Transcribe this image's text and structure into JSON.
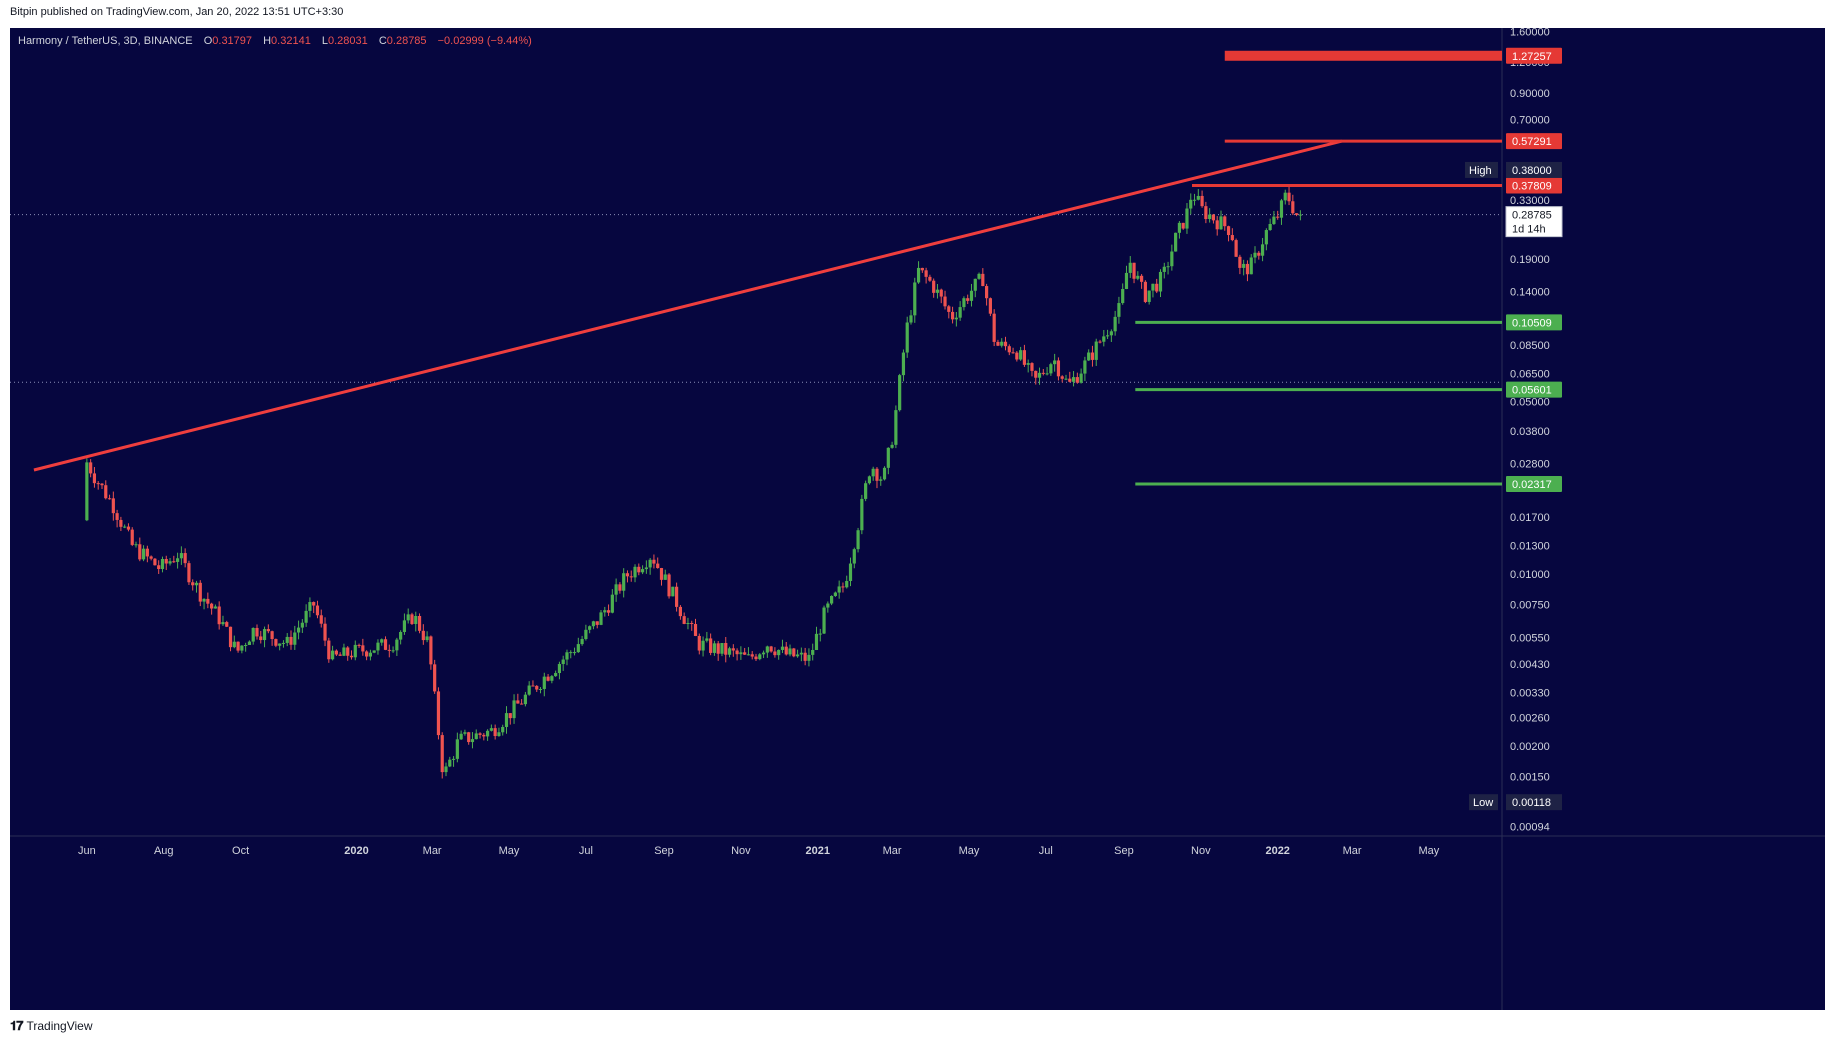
{
  "header": {
    "published": "Bitpin published on TradingView.com, Jan 20, 2022 13:51 UTC+3:30"
  },
  "legend": {
    "symbol": "Harmony / TetherUS, 3D, BINANCE",
    "open_label": "O",
    "open": "0.31797",
    "high_label": "H",
    "high": "0.32141",
    "low_label": "L",
    "low": "0.28031",
    "close_label": "C",
    "close": "0.28785",
    "change": "−0.02999 (−9.44%)"
  },
  "footer": {
    "brand": "TradingView"
  },
  "colors": {
    "background": "#06063f",
    "up": "#26a69a",
    "up_bright": "#4caf50",
    "down": "#ef5350",
    "trendline": "#ef3e3e",
    "support": "#4caf50",
    "resistance": "#e53935",
    "axis_text": "#d1d4dc"
  },
  "chart_data": {
    "type": "candlestick",
    "scale": "log",
    "x_axis": {
      "ticks": [
        "Jun",
        "Aug",
        "Oct",
        "2020",
        "Mar",
        "May",
        "Jul",
        "Sep",
        "Nov",
        "2021",
        "Mar",
        "May",
        "Jul",
        "Sep",
        "Nov",
        "2022",
        "Mar",
        "May"
      ],
      "tick_dates": [
        "2019-06-01",
        "2019-08-01",
        "2019-10-01",
        "2020-01-01",
        "2020-03-01",
        "2020-05-01",
        "2020-07-01",
        "2020-09-01",
        "2020-11-01",
        "2021-01-01",
        "2021-03-01",
        "2021-05-01",
        "2021-07-01",
        "2021-09-01",
        "2021-11-01",
        "2022-01-01",
        "2022-03-01",
        "2022-05-01"
      ],
      "range": [
        "2019-04-01",
        "2022-06-28"
      ]
    },
    "y_axis": {
      "ticks": [
        "1.60000",
        "1.20000",
        "0.90000",
        "0.70000",
        "0.33000",
        "0.19000",
        "0.14000",
        "0.08500",
        "0.06500",
        "0.05000",
        "0.03800",
        "0.02800",
        "0.01700",
        "0.01300",
        "0.01000",
        "0.00750",
        "0.00550",
        "0.00430",
        "0.00330",
        "0.00260",
        "0.00200",
        "0.00150",
        "0.00094"
      ],
      "range": [
        0.00086,
        1.65
      ]
    },
    "price_labels": [
      {
        "value": "1.27257",
        "price": 1.27257,
        "kind": "resistance"
      },
      {
        "value": "0.57291",
        "price": 0.57291,
        "kind": "resistance"
      },
      {
        "value": "0.37809",
        "price": 0.37809,
        "kind": "resistance"
      },
      {
        "value": "0.10509",
        "price": 0.10509,
        "kind": "support"
      },
      {
        "value": "0.05601",
        "price": 0.05601,
        "kind": "support"
      },
      {
        "value": "0.02317",
        "price": 0.02317,
        "kind": "support"
      }
    ],
    "high_marker": {
      "label": "High",
      "value": "0.38000",
      "price": 0.38
    },
    "low_marker": {
      "label": "Low",
      "value": "0.00118",
      "price": 0.00118
    },
    "last_price": {
      "value": "0.28785",
      "price": 0.28785,
      "countdown": "1d 14h"
    },
    "trendline": [
      {
        "date": "2019-04-20",
        "price": 0.0264
      },
      {
        "date": "2022-02-21",
        "price": 0.5729
      }
    ],
    "horizontal_levels": [
      {
        "kind": "resistance",
        "price": 1.27257,
        "start": "2021-11-20",
        "thick": true
      },
      {
        "kind": "resistance",
        "price": 0.57291,
        "start": "2021-11-20",
        "thick": false
      },
      {
        "kind": "resistance",
        "price": 0.37809,
        "start": "2021-10-25",
        "thick": false
      },
      {
        "kind": "support",
        "price": 0.10509,
        "start": "2021-09-10",
        "thick": false
      },
      {
        "kind": "support",
        "price": 0.05601,
        "start": "2021-09-10",
        "thick": false
      },
      {
        "kind": "support",
        "price": 0.02317,
        "start": "2021-09-10",
        "thick": false
      }
    ],
    "dotted_levels": [
      0.28785,
      0.06
    ],
    "price_path": [
      {
        "date": "2019-06-01",
        "price": 0.0165
      },
      {
        "date": "2019-06-03",
        "price": 0.029
      },
      {
        "date": "2019-06-12",
        "price": 0.024
      },
      {
        "date": "2019-06-25",
        "price": 0.019
      },
      {
        "date": "2019-07-10",
        "price": 0.013
      },
      {
        "date": "2019-08-01",
        "price": 0.0105
      },
      {
        "date": "2019-08-15",
        "price": 0.012
      },
      {
        "date": "2019-09-01",
        "price": 0.0085
      },
      {
        "date": "2019-09-18",
        "price": 0.0065
      },
      {
        "date": "2019-10-01",
        "price": 0.0048
      },
      {
        "date": "2019-10-15",
        "price": 0.006
      },
      {
        "date": "2019-11-10",
        "price": 0.0052
      },
      {
        "date": "2019-12-01",
        "price": 0.0075
      },
      {
        "date": "2019-12-15",
        "price": 0.0045
      },
      {
        "date": "2020-01-01",
        "price": 0.0048
      },
      {
        "date": "2020-02-01",
        "price": 0.0052
      },
      {
        "date": "2020-02-18",
        "price": 0.0068
      },
      {
        "date": "2020-03-01",
        "price": 0.0052
      },
      {
        "date": "2020-03-13",
        "price": 0.0015
      },
      {
        "date": "2020-03-25",
        "price": 0.0021
      },
      {
        "date": "2020-04-20",
        "price": 0.0023
      },
      {
        "date": "2020-05-10",
        "price": 0.0029
      },
      {
        "date": "2020-06-01",
        "price": 0.0038
      },
      {
        "date": "2020-06-25",
        "price": 0.005
      },
      {
        "date": "2020-07-15",
        "price": 0.0066
      },
      {
        "date": "2020-08-05",
        "price": 0.0098
      },
      {
        "date": "2020-08-25",
        "price": 0.012
      },
      {
        "date": "2020-09-15",
        "price": 0.0075
      },
      {
        "date": "2020-10-01",
        "price": 0.0052
      },
      {
        "date": "2020-10-25",
        "price": 0.0048
      },
      {
        "date": "2020-11-10",
        "price": 0.0045
      },
      {
        "date": "2020-11-25",
        "price": 0.0052
      },
      {
        "date": "2020-12-10",
        "price": 0.0047
      },
      {
        "date": "2020-12-28",
        "price": 0.0045
      },
      {
        "date": "2021-01-10",
        "price": 0.007
      },
      {
        "date": "2021-01-25",
        "price": 0.009
      },
      {
        "date": "2021-02-05",
        "price": 0.016
      },
      {
        "date": "2021-02-15",
        "price": 0.028
      },
      {
        "date": "2021-02-25",
        "price": 0.024
      },
      {
        "date": "2021-03-05",
        "price": 0.038
      },
      {
        "date": "2021-03-15",
        "price": 0.095
      },
      {
        "date": "2021-03-25",
        "price": 0.17
      },
      {
        "date": "2021-04-05",
        "price": 0.15
      },
      {
        "date": "2021-04-20",
        "price": 0.11
      },
      {
        "date": "2021-05-05",
        "price": 0.14
      },
      {
        "date": "2021-05-15",
        "price": 0.16
      },
      {
        "date": "2021-05-25",
        "price": 0.085
      },
      {
        "date": "2021-06-10",
        "price": 0.082
      },
      {
        "date": "2021-06-25",
        "price": 0.06
      },
      {
        "date": "2021-07-10",
        "price": 0.075
      },
      {
        "date": "2021-07-22",
        "price": 0.058
      },
      {
        "date": "2021-08-05",
        "price": 0.072
      },
      {
        "date": "2021-08-20",
        "price": 0.095
      },
      {
        "date": "2021-09-01",
        "price": 0.12
      },
      {
        "date": "2021-09-08",
        "price": 0.19
      },
      {
        "date": "2021-09-20",
        "price": 0.135
      },
      {
        "date": "2021-10-05",
        "price": 0.16
      },
      {
        "date": "2021-10-15",
        "price": 0.23
      },
      {
        "date": "2021-10-25",
        "price": 0.3
      },
      {
        "date": "2021-10-28",
        "price": 0.36
      },
      {
        "date": "2021-11-05",
        "price": 0.3
      },
      {
        "date": "2021-11-18",
        "price": 0.27
      },
      {
        "date": "2021-11-28",
        "price": 0.25
      },
      {
        "date": "2021-12-05",
        "price": 0.17
      },
      {
        "date": "2021-12-15",
        "price": 0.18
      },
      {
        "date": "2021-12-25",
        "price": 0.24
      },
      {
        "date": "2022-01-05",
        "price": 0.29
      },
      {
        "date": "2022-01-11",
        "price": 0.35
      },
      {
        "date": "2022-01-19",
        "price": 0.288
      }
    ],
    "grid": false
  }
}
